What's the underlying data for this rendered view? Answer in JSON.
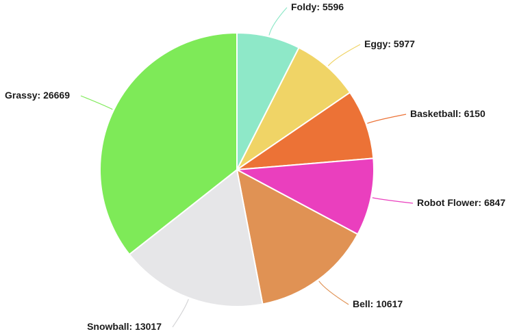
{
  "chart_data": {
    "type": "pie",
    "title": "",
    "slices": [
      {
        "label": "Foldy",
        "value": 5596,
        "color": "#8ee8c8"
      },
      {
        "label": "Eggy",
        "value": 5977,
        "color": "#f0d466"
      },
      {
        "label": "Basketball",
        "value": 6150,
        "color": "#ec7236"
      },
      {
        "label": "Robot Flower",
        "value": 6847,
        "color": "#ea3fbe"
      },
      {
        "label": "Bell",
        "value": 10617,
        "color": "#e09254"
      },
      {
        "label": "Snowball",
        "value": 13017,
        "color": "#e6e6e8"
      },
      {
        "label": "Grassy",
        "value": 26669,
        "color": "#7eea58"
      }
    ],
    "start": "top",
    "direction": "clockwise",
    "legend": "none"
  }
}
